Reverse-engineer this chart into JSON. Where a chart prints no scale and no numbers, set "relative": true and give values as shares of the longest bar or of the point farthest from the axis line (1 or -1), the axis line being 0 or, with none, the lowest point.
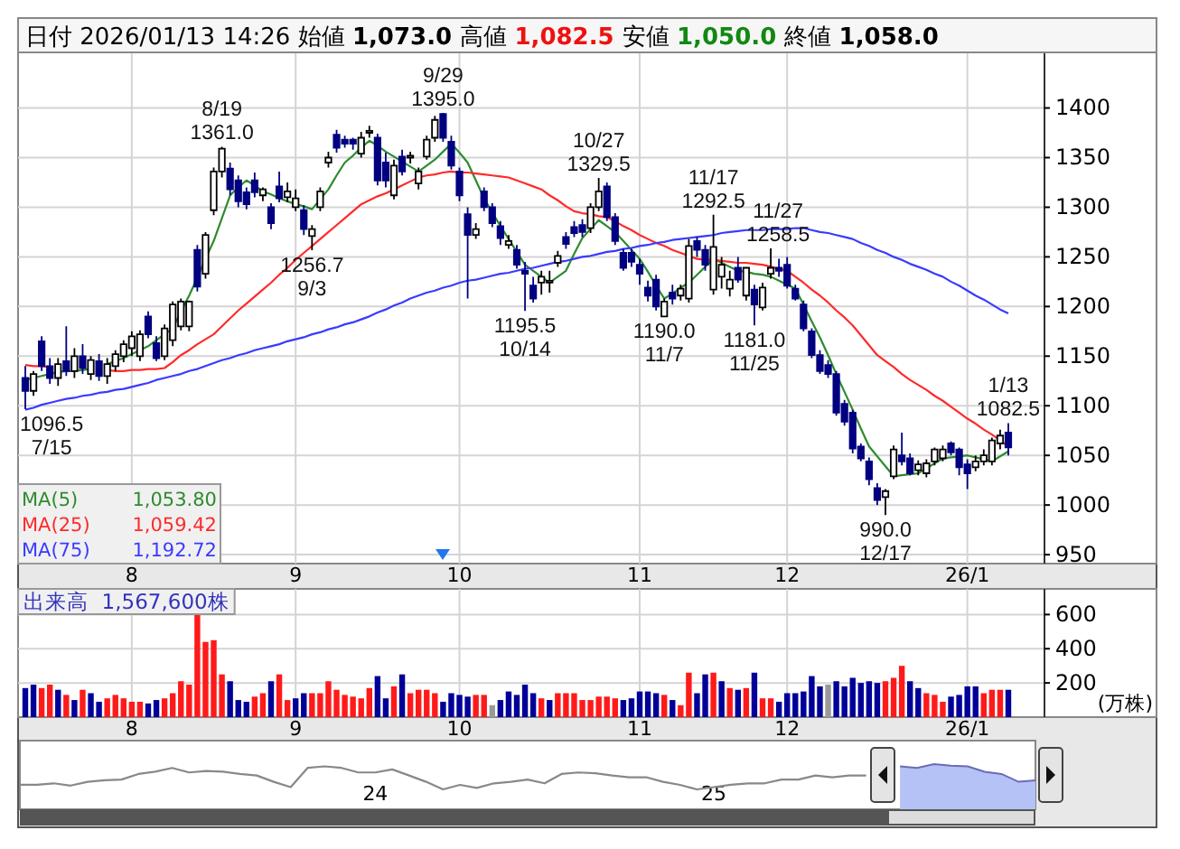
{
  "chart_data": [
    {
      "type": "candlestick",
      "title": "日付 2026/01/13 14:26 始値 1,073.0 高値 1,082.5 安値 1,050.0 終値 1,058.0",
      "categories": [
        null,
        null,
        null,
        null,
        null,
        null,
        null,
        null,
        null,
        null,
        null,
        null,
        null,
        "8",
        null,
        null,
        null,
        null,
        null,
        null,
        null,
        null,
        null,
        null,
        null,
        null,
        null,
        null,
        null,
        null,
        null,
        null,
        null,
        "9",
        null,
        null,
        null,
        null,
        null,
        null,
        null,
        null,
        null,
        null,
        null,
        null,
        null,
        null,
        null,
        null,
        null,
        null,
        null,
        "10",
        null,
        null,
        null,
        null,
        null,
        null,
        null,
        null,
        null,
        null,
        null,
        null,
        null,
        null,
        null,
        null,
        null,
        null,
        null,
        null,
        null,
        "11",
        null,
        null,
        null,
        null,
        null,
        null,
        null,
        null,
        null,
        null,
        null,
        null,
        null,
        null,
        null,
        null,
        null,
        "12",
        null,
        null,
        null,
        null,
        null,
        null,
        null,
        null,
        null,
        null,
        null,
        null,
        null,
        null,
        null,
        null,
        null,
        null,
        null,
        null,
        null,
        "26/1",
        null,
        null,
        null,
        null,
        null
      ],
      "ohlc": [
        [
          1128,
          1140,
          1096.5,
          1115
        ],
        [
          1115,
          1135,
          1110,
          1132
        ],
        [
          1165,
          1170,
          1135,
          1140
        ],
        [
          1140,
          1148,
          1122,
          1128
        ],
        [
          1128,
          1148,
          1120,
          1142
        ],
        [
          1145,
          1180,
          1130,
          1135
        ],
        [
          1135,
          1158,
          1128,
          1150
        ],
        [
          1150,
          1162,
          1132,
          1138
        ],
        [
          1132,
          1150,
          1126,
          1146
        ],
        [
          1145,
          1152,
          1125,
          1130
        ],
        [
          1130,
          1148,
          1122,
          1142
        ],
        [
          1140,
          1156,
          1135,
          1152
        ],
        [
          1150,
          1166,
          1144,
          1162
        ],
        [
          1158,
          1175,
          1150,
          1170
        ],
        [
          1150,
          1176,
          1145,
          1172
        ],
        [
          1190,
          1195,
          1168,
          1172
        ],
        [
          1163,
          1170,
          1145,
          1148
        ],
        [
          1150,
          1182,
          1146,
          1178
        ],
        [
          1166,
          1205,
          1160,
          1202
        ],
        [
          1180,
          1208,
          1176,
          1205
        ],
        [
          1180,
          1206,
          1175,
          1205
        ],
        [
          1257,
          1262,
          1215,
          1220
        ],
        [
          1233,
          1275,
          1228,
          1272
        ],
        [
          1297,
          1340,
          1292,
          1336
        ],
        [
          1336,
          1361,
          1330,
          1359
        ],
        [
          1339,
          1345,
          1312,
          1318
        ],
        [
          1327,
          1332,
          1300,
          1306
        ],
        [
          1315,
          1320,
          1298,
          1303
        ],
        [
          1327,
          1335,
          1310,
          1315
        ],
        [
          1312,
          1320,
          1306,
          1318
        ],
        [
          1300,
          1304,
          1278,
          1284
        ],
        [
          1321,
          1336,
          1305,
          1309
        ],
        [
          1310,
          1325,
          1305,
          1316
        ],
        [
          1300,
          1318,
          1296,
          1309
        ],
        [
          1297,
          1302,
          1272,
          1278
        ],
        [
          1271,
          1282,
          1256.7,
          1278
        ],
        [
          1300,
          1320,
          1296,
          1316
        ],
        [
          1345,
          1356,
          1340,
          1350
        ],
        [
          1373,
          1378,
          1355,
          1360
        ],
        [
          1368,
          1372,
          1360,
          1364
        ],
        [
          1368,
          1370,
          1358,
          1364
        ],
        [
          1354,
          1376,
          1350,
          1370
        ],
        [
          1375,
          1382,
          1370,
          1377
        ],
        [
          1370,
          1374,
          1322,
          1327
        ],
        [
          1345,
          1355,
          1320,
          1327
        ],
        [
          1312,
          1348,
          1308,
          1342
        ],
        [
          1351,
          1358,
          1332,
          1336
        ],
        [
          1350,
          1356,
          1344,
          1352
        ],
        [
          1324,
          1340,
          1318,
          1336
        ],
        [
          1351,
          1372,
          1348,
          1368
        ],
        [
          1370,
          1392,
          1366,
          1388
        ],
        [
          1394,
          1395,
          1366,
          1370
        ],
        [
          1366,
          1372,
          1338,
          1342
        ],
        [
          1336,
          1340,
          1306,
          1312
        ],
        [
          1293,
          1300,
          1208,
          1272
        ],
        [
          1272,
          1284,
          1268,
          1278
        ],
        [
          1316,
          1320,
          1296,
          1300
        ],
        [
          1300,
          1304,
          1280,
          1284
        ],
        [
          1281,
          1286,
          1262,
          1269
        ],
        [
          1262,
          1272,
          1258,
          1266
        ],
        [
          1257,
          1262,
          1238,
          1242
        ],
        [
          1236,
          1245,
          1195.5,
          1233
        ],
        [
          1221,
          1230,
          1204,
          1208
        ],
        [
          1224,
          1236,
          1212,
          1230
        ],
        [
          1225,
          1236,
          1214,
          1226
        ],
        [
          1244,
          1256,
          1240,
          1251
        ],
        [
          1270,
          1275,
          1258,
          1263
        ],
        [
          1280,
          1286,
          1270,
          1274
        ],
        [
          1282,
          1288,
          1270,
          1275
        ],
        [
          1279,
          1304,
          1274,
          1300
        ],
        [
          1300,
          1329.5,
          1296,
          1316
        ],
        [
          1321,
          1325,
          1286,
          1290
        ],
        [
          1290,
          1294,
          1262,
          1266
        ],
        [
          1254,
          1258,
          1236,
          1239
        ],
        [
          1254,
          1258,
          1240,
          1245
        ],
        [
          1242,
          1248,
          1222,
          1233
        ],
        [
          1219,
          1226,
          1205,
          1211
        ],
        [
          1227,
          1232,
          1196,
          1200
        ],
        [
          1190,
          1208,
          1190,
          1205
        ],
        [
          1214,
          1222,
          1202,
          1208
        ],
        [
          1211,
          1222,
          1206,
          1218
        ],
        [
          1208,
          1268,
          1204,
          1261
        ],
        [
          1266,
          1270,
          1250,
          1257
        ],
        [
          1257,
          1262,
          1236,
          1242
        ],
        [
          1217,
          1292.5,
          1212,
          1260
        ],
        [
          1230,
          1250,
          1218,
          1242
        ],
        [
          1218,
          1236,
          1210,
          1227
        ],
        [
          1239,
          1250,
          1224,
          1227
        ],
        [
          1211,
          1240,
          1206,
          1239
        ],
        [
          1217,
          1222,
          1181,
          1202
        ],
        [
          1199,
          1224,
          1196,
          1219
        ],
        [
          1233,
          1258.5,
          1228,
          1239
        ],
        [
          1239,
          1248,
          1230,
          1236
        ],
        [
          1242,
          1250,
          1218,
          1221
        ],
        [
          1218,
          1222,
          1206,
          1208
        ],
        [
          1202,
          1206,
          1175,
          1178
        ],
        [
          1175,
          1178,
          1148,
          1151
        ],
        [
          1151,
          1156,
          1132,
          1135
        ],
        [
          1141,
          1146,
          1128,
          1132
        ],
        [
          1132,
          1135,
          1090,
          1093
        ],
        [
          1102,
          1106,
          1080,
          1084
        ],
        [
          1093,
          1096,
          1052,
          1057
        ],
        [
          1059,
          1062,
          1044,
          1047
        ],
        [
          1044,
          1048,
          1020,
          1026
        ],
        [
          1017,
          1022,
          1000,
          1005
        ],
        [
          1008,
          1016,
          990,
          1014
        ],
        [
          1029,
          1060,
          1026,
          1056
        ],
        [
          1050,
          1073,
          1040,
          1044
        ],
        [
          1047,
          1052,
          1030,
          1032
        ],
        [
          1035,
          1045,
          1030,
          1041
        ],
        [
          1032,
          1046,
          1028,
          1042
        ],
        [
          1044,
          1058,
          1040,
          1056
        ],
        [
          1047,
          1060,
          1044,
          1056
        ],
        [
          1062,
          1064,
          1050,
          1053
        ],
        [
          1056,
          1058,
          1030,
          1038
        ],
        [
          1041,
          1046,
          1016,
          1032
        ],
        [
          1038,
          1050,
          1034,
          1044
        ],
        [
          1044,
          1056,
          1040,
          1050
        ],
        [
          1044,
          1068,
          1040,
          1065
        ],
        [
          1062,
          1076,
          1056,
          1070
        ],
        [
          1073,
          1082.5,
          1050,
          1058
        ]
      ],
      "series": [
        {
          "name": "MA(5) 1,053.80",
          "type": "line",
          "color": "#2e8b2e",
          "values": [
            1126,
            1128,
            1130,
            1132,
            1134,
            1135,
            1135,
            1136,
            1137,
            null,
            1142,
            1145,
            1148,
            1152,
            1156,
            1160,
            1166,
            1172,
            1178,
            1195,
            1211,
            1229,
            1248,
            1266,
            1289,
            1312,
            1320,
            1327,
            1322,
            1316,
            1313,
            1309,
            1306,
            1303,
            1301,
            1298,
            1308,
            1318,
            1332,
            1345,
            1352,
            1360,
            1367,
            1362,
            1356,
            1351,
            1346,
            1341,
            1336,
            1342,
            1348,
            1356,
            1364,
            1355,
            1345,
            1327,
            1309,
            1295,
            1281,
            1268,
            1255,
            1242,
            1236,
            1230,
            1224,
            1230,
            1236,
            1253,
            1269,
            1278,
            1287,
            1281,
            1275,
            1266,
            1257,
            1248,
            1235,
            1221,
            1208,
            1213,
            1219,
            1224,
            1232,
            1240,
            1248,
            1244,
            1240,
            1236,
            1235,
            1233,
            1232,
            1230,
            1226,
            1222,
            1218,
            1202,
            1185,
            1169,
            1151,
            1132,
            1114,
            1096,
            1077,
            1059,
            1049,
            1039,
            1029,
            1030,
            1031,
            1032,
            1037,
            1042,
            1047,
            1048,
            1049,
            1050,
            1048,
            1046,
            1044,
            1049,
            1054
          ]
        },
        {
          "name": "MA(25) 1,059.42",
          "type": "line",
          "color": "#ff2a2a",
          "values": [
            1141,
            1140,
            1140,
            1139,
            null,
            null,
            null,
            null,
            null,
            null,
            1136,
            1135,
            1135,
            1136,
            1136,
            1137,
            1137,
            1138,
            1144,
            1151,
            1156,
            1162,
            1167,
            1172,
            1180,
            1188,
            1196,
            1203,
            1210,
            1217,
            1224,
            1232,
            1239,
            1247,
            1254,
            1261,
            1268,
            1275,
            1282,
            1289,
            1296,
            1303,
            1307,
            1311,
            1314,
            1318,
            1322,
            1326,
            1330,
            1332,
            1333,
            1335,
            1336,
            1335,
            1335,
            1334,
            1333,
            1332,
            1331,
            1330,
            1327,
            1324,
            1321,
            1318,
            1312,
            1307,
            1301,
            1296,
            1294,
            1293,
            1291,
            1290,
            1286,
            1281,
            1277,
            1272,
            1268,
            1264,
            1261,
            1257,
            1254,
            1251,
            1248,
            1247,
            1247,
            1246,
            1245,
            1244,
            1244,
            1243,
            1242,
            1240,
            1238,
            1236,
            1230,
            1224,
            1217,
            1211,
            1204,
            1196,
            1189,
            1181,
            1171,
            1161,
            1151,
            1145,
            1139,
            1132,
            1126,
            1121,
            1116,
            1110,
            1105,
            1099,
            1093,
            1087,
            1082,
            1076,
            1071,
            1065,
            1059
          ]
        },
        {
          "name": "MA(75) 1,192.72",
          "type": "line",
          "color": "#3a3aff",
          "values": [
            1096,
            1098,
            1101,
            1103,
            1105,
            1107,
            1108,
            1110,
            1111,
            1113,
            1114,
            1116,
            1117,
            1119,
            1121,
            1123,
            1126,
            1128,
            1130,
            1132,
            1135,
            1137,
            1140,
            1143,
            1146,
            1148,
            1151,
            1153,
            1156,
            1158,
            1160,
            1162,
            1165,
            1167,
            1169,
            1172,
            1174,
            1177,
            1179,
            1182,
            1184,
            1187,
            1190,
            1194,
            1197,
            1201,
            1204,
            1208,
            1211,
            1214,
            1216,
            1219,
            1221,
            1224,
            1226,
            1227,
            1229,
            1231,
            1233,
            1234,
            1236,
            1238,
            1239,
            1241,
            1243,
            1245,
            1246,
            1248,
            1250,
            1251,
            1253,
            1255,
            1256,
            1258,
            1259,
            1261,
            1262,
            1264,
            1265,
            1267,
            1268,
            1269,
            1270,
            1271,
            1272,
            1274,
            1275,
            1276,
            1277,
            1277,
            1277,
            1278,
            1278,
            1278,
            1279,
            1279,
            1277,
            1275,
            1274,
            1272,
            1270,
            1268,
            1264,
            1261,
            1257,
            1254,
            1250,
            1247,
            1243,
            1240,
            1237,
            1233,
            1230,
            1225,
            1221,
            1216,
            1211,
            1207,
            1202,
            1197,
            1193
          ]
        }
      ],
      "ylim": [
        941,
        1456
      ],
      "yticks": [
        950,
        1000,
        1050,
        1100,
        1150,
        1200,
        1250,
        1300,
        1350,
        1400
      ],
      "grid": true,
      "annotations": [
        {
          "text": "1096.5\n7/15",
          "y": 1096.5
        },
        {
          "text": "8/19\n1361.0",
          "y": 1361
        },
        {
          "text": "1256.7\n9/3",
          "y": 1256.7
        },
        {
          "text": "9/29\n1395.0",
          "y": 1395
        },
        {
          "text": "1195.5\n10/14",
          "y": 1195.5
        },
        {
          "text": "10/27\n1329.5",
          "y": 1329.5
        },
        {
          "text": "1190.0\n11/7",
          "y": 1190
        },
        {
          "text": "11/17\n1292.5",
          "y": 1292.5
        },
        {
          "text": "1181.0\n11/25",
          "y": 1181
        },
        {
          "text": "11/27\n1258.5",
          "y": 1258.5
        },
        {
          "text": "990.0\n12/17",
          "y": 990
        },
        {
          "text": "1/13\n1082.5",
          "y": 1082.5
        }
      ]
    },
    {
      "type": "bar",
      "title": "出来高  1,567,600株",
      "ylabel": "(万株)",
      "categories": [
        null,
        null,
        null,
        null,
        null,
        null,
        null,
        null,
        null,
        null,
        null,
        null,
        null,
        "8",
        null,
        null,
        null,
        null,
        null,
        null,
        null,
        null,
        null,
        null,
        null,
        null,
        null,
        null,
        null,
        null,
        null,
        null,
        null,
        "9",
        null,
        null,
        null,
        null,
        null,
        null,
        null,
        null,
        null,
        null,
        null,
        null,
        null,
        null,
        null,
        null,
        null,
        null,
        null,
        "10",
        null,
        null,
        null,
        null,
        null,
        null,
        null,
        null,
        null,
        null,
        null,
        null,
        null,
        null,
        null,
        null,
        null,
        null,
        null,
        null,
        null,
        "11",
        null,
        null,
        null,
        null,
        null,
        null,
        null,
        null,
        null,
        null,
        null,
        null,
        null,
        null,
        null,
        null,
        null,
        "12",
        null,
        null,
        null,
        null,
        null,
        null,
        null,
        null,
        null,
        null,
        null,
        null,
        null,
        null,
        null,
        null,
        null,
        null,
        null,
        null,
        null,
        "26/1",
        null,
        null,
        null,
        null,
        null
      ],
      "values": [
        170,
        190,
        170,
        190,
        160,
        130,
        100,
        160,
        140,
        90,
        110,
        130,
        110,
        90,
        90,
        80,
        100,
        110,
        140,
        210,
        190,
        600,
        440,
        450,
        250,
        210,
        100,
        90,
        120,
        140,
        210,
        250,
        100,
        110,
        140,
        140,
        140,
        210,
        160,
        130,
        120,
        110,
        170,
        240,
        110,
        180,
        250,
        140,
        160,
        160,
        140,
        90,
        140,
        130,
        120,
        130,
        130,
        70,
        100,
        150,
        130,
        190,
        140,
        110,
        100,
        140,
        140,
        140,
        100,
        100,
        120,
        120,
        110,
        100,
        110,
        150,
        150,
        140,
        130,
        100,
        70,
        260,
        140,
        250,
        260,
        210,
        170,
        160,
        170,
        260,
        110,
        110,
        90,
        140,
        140,
        150,
        240,
        180,
        190,
        210,
        180,
        230,
        200,
        210,
        200,
        210,
        230,
        300,
        210,
        170,
        140,
        130,
        90,
        120,
        130,
        180,
        180,
        140,
        160,
        160,
        160
      ],
      "colors": [
        "#000099",
        "#000099",
        "#ff1a1a",
        "#ff1a1a",
        "#000099",
        "#ff1a1a",
        "#000099",
        "#ff1a1a",
        "#000099",
        "#000099",
        "#ff1a1a",
        "#ff1a1a",
        "#ff1a1a",
        "#ff1a1a",
        "#ff1a1a",
        "#000099",
        "#000099",
        "#ff1a1a",
        "#ff1a1a",
        "#ff1a1a",
        "#ff1a1a",
        "#ff1a1a",
        "#ff1a1a",
        "#ff1a1a",
        "#ff1a1a",
        "#000099",
        "#000099",
        "#000099",
        "#ff1a1a",
        "#ff1a1a",
        "#000099",
        "#ff1a1a",
        "#ff1a1a",
        "#000099",
        "#000099",
        "#ff1a1a",
        "#ff1a1a",
        "#ff1a1a",
        "#ff1a1a",
        "#ff1a1a",
        "#ff1a1a",
        "#ff1a1a",
        "#ff1a1a",
        "#000099",
        "#000099",
        "#ff1a1a",
        "#000099",
        "#ff1a1a",
        "#ff1a1a",
        "#ff1a1a",
        "#ff1a1a",
        "#000099",
        "#000099",
        "#000099",
        "#000099",
        "#ff1a1a",
        "#ff1a1a",
        "#999999",
        "#000099",
        "#000099",
        "#000099",
        "#000099",
        "#000099",
        "#ff1a1a",
        "#000099",
        "#ff1a1a",
        "#ff1a1a",
        "#ff1a1a",
        "#ff1a1a",
        "#ff1a1a",
        "#ff1a1a",
        "#ff1a1a",
        "#ff1a1a",
        "#000099",
        "#000099",
        "#000099",
        "#000099",
        "#000099",
        "#ff1a1a",
        "#000099",
        "#ff1a1a",
        "#ff1a1a",
        "#000099",
        "#000099",
        "#ff1a1a",
        "#000099",
        "#ff1a1a",
        "#000099",
        "#ff1a1a",
        "#000099",
        "#ff1a1a",
        "#ff1a1a",
        "#000099",
        "#000099",
        "#000099",
        "#000099",
        "#000099",
        "#000099",
        "#999999",
        "#000099",
        "#000099",
        "#000099",
        "#000099",
        "#000099",
        "#000099",
        "#ff1a1a",
        "#ff1a1a",
        "#ff1a1a",
        "#000099",
        "#000099",
        "#ff1a1a",
        "#ff1a1a",
        "#ff1a1a",
        "#000099",
        "#000099",
        "#000099",
        "#000099",
        "#ff1a1a",
        "#ff1a1a",
        "#ff1a1a",
        "#000099"
      ],
      "ylim": [
        0,
        750
      ],
      "yticks": [
        200,
        400,
        600
      ],
      "grid": true
    },
    {
      "type": "line",
      "relative": true,
      "tick_labels": "x",
      "categories": [
        null,
        null,
        null,
        null,
        null,
        null,
        null,
        null,
        null,
        null,
        null,
        null,
        null,
        null,
        null,
        null,
        null,
        null,
        null,
        null,
        null,
        "24",
        null,
        null,
        null,
        null,
        null,
        null,
        null,
        null,
        null,
        null,
        null,
        null,
        null,
        null,
        null,
        null,
        null,
        null,
        null,
        "25",
        null,
        null,
        null,
        null,
        null,
        null,
        null,
        null,
        null,
        null,
        null,
        null,
        null,
        null,
        null,
        null,
        null,
        null,
        null
      ],
      "series": [
        {
          "color": "#888888",
          "values": [
            0.18,
            0.18,
            0.24,
            0.15,
            0.3,
            0.36,
            0.39,
            0.61,
            0.7,
            0.85,
            0.67,
            0.73,
            0.7,
            0.61,
            0.55,
            0.3,
            0.09,
            0.85,
            0.91,
            0.85,
            0.67,
            0.67,
            0.79,
            0.55,
            0.3,
            0,
            0.18,
            0.06,
            0.24,
            0.3,
            0.39,
            0.24,
            0.61,
            0.67,
            0.64,
            0.55,
            0.48,
            0.48,
            0.3,
            0.18,
            0,
            0.09,
            0.18,
            0.24,
            0.24,
            0.39,
            0.39,
            0.55,
            0.48,
            0.55,
            0.55,
            null,
            null,
            null,
            null,
            null,
            null,
            null,
            null,
            null,
            null
          ]
        },
        {
          "type": "area",
          "color": "#b4c2f5",
          "values": [
            null,
            null,
            null,
            null,
            null,
            null,
            null,
            null,
            null,
            null,
            null,
            null,
            null,
            null,
            null,
            null,
            null,
            null,
            null,
            null,
            null,
            null,
            null,
            null,
            null,
            null,
            null,
            null,
            null,
            null,
            null,
            null,
            null,
            null,
            null,
            null,
            null,
            null,
            null,
            null,
            null,
            null,
            null,
            null,
            null,
            null,
            null,
            null,
            null,
            null,
            null,
            null,
            0.91,
            0.85,
            1,
            0.94,
            0.91,
            0.7,
            0.61,
            0.3,
            0.36
          ]
        }
      ]
    }
  ]
}
